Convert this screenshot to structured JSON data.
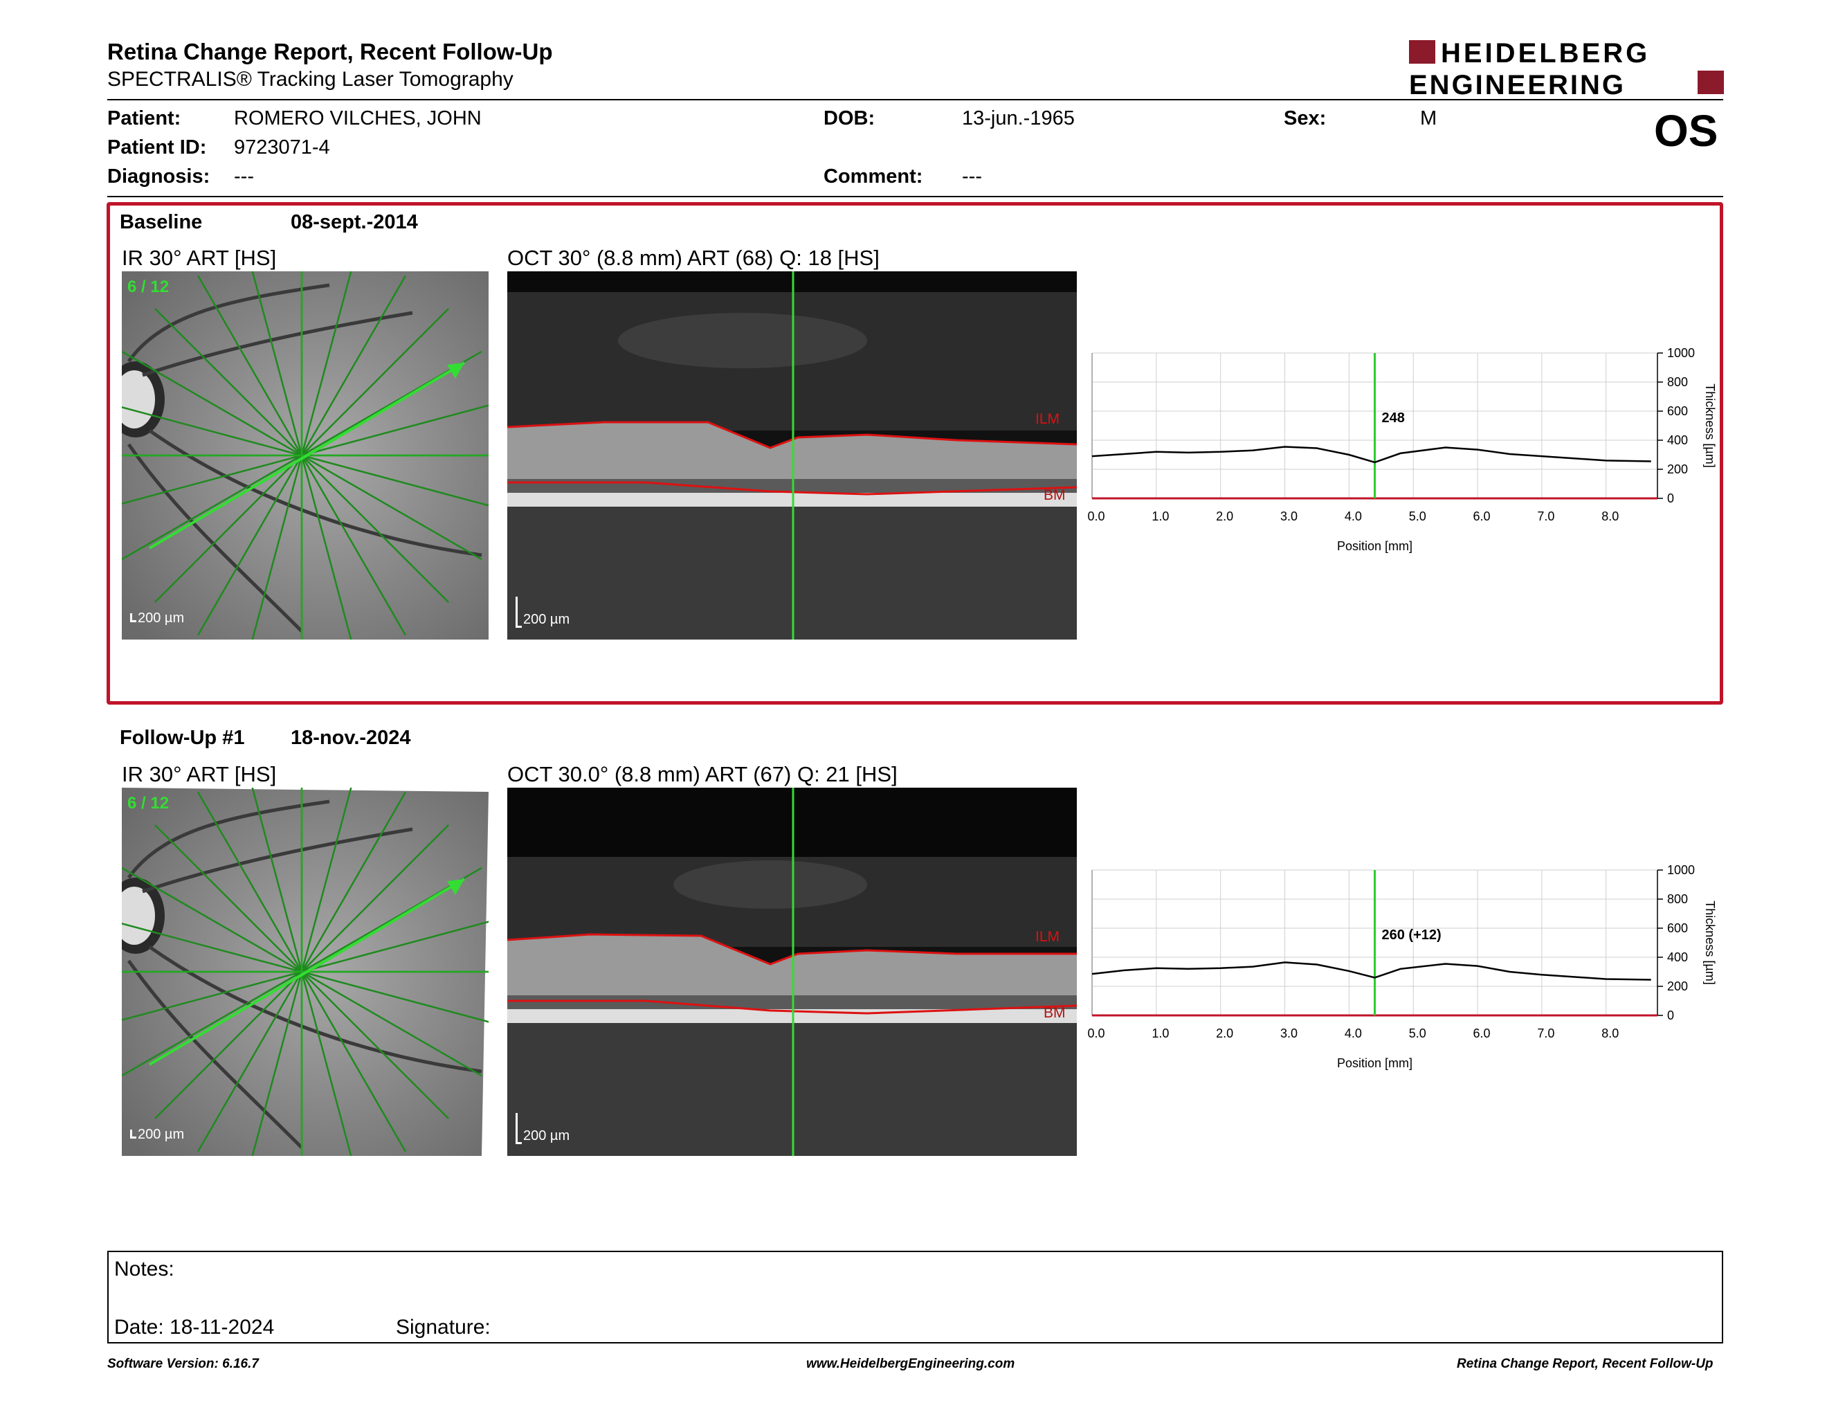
{
  "header": {
    "title": "Retina Change Report, Recent Follow-Up",
    "subtitle": "SPECTRALIS® Tracking Laser Tomography",
    "logo_line1": "HEIDELBERG",
    "logo_line2": "ENGINEERING",
    "brand_color": "#8b1a2b"
  },
  "patient": {
    "name_label": "Patient:",
    "name": "ROMERO VILCHES, JOHN",
    "id_label": "Patient ID:",
    "id": "9723071-4",
    "diagnosis_label": "Diagnosis:",
    "diagnosis": "---",
    "dob_label": "DOB:",
    "dob": "13-jun.-1965",
    "comment_label": "Comment:",
    "comment": "---",
    "sex_label": "Sex:",
    "sex": "M",
    "eye": "OS"
  },
  "baseline": {
    "label": "Baseline",
    "date": "08-sept.-2014",
    "ir_title": "IR 30° ART [HS]",
    "ir_counter": "6 / 12",
    "oct_title": "OCT 30° (8.8 mm) ART (68) Q: 18 [HS]",
    "scale_label": "200 µm",
    "ilm": "ILM",
    "bm": "BM",
    "highlight_color": "#c0142a"
  },
  "followup": {
    "label": "Follow-Up #1",
    "date": "18-nov.-2024",
    "ir_title": "IR 30° ART [HS]",
    "ir_counter": "6 / 12",
    "oct_title": "OCT 30.0° (8.8 mm) ART (67) Q: 21 [HS]",
    "scale_label": "200 µm",
    "ilm": "ILM",
    "bm": "BM"
  },
  "chart_data": [
    {
      "type": "line",
      "xlabel": "Position [mm]",
      "ylabel": "Thickness [µm]",
      "xlim": [
        0,
        8.8
      ],
      "ylim": [
        0,
        1000
      ],
      "x_ticks": [
        "0.0",
        "1.0",
        "2.0",
        "3.0",
        "4.0",
        "5.0",
        "6.0",
        "7.0",
        "8.0"
      ],
      "y_ticks": [
        "0",
        "200",
        "400",
        "600",
        "800",
        "1000"
      ],
      "grid": true,
      "marker_x": 4.4,
      "marker_label": "248",
      "marker_color": "#2ecc2e",
      "x": [
        0,
        0.5,
        1.0,
        1.5,
        2.0,
        2.5,
        3.0,
        3.5,
        4.0,
        4.4,
        4.8,
        5.5,
        6.0,
        6.5,
        7.0,
        7.5,
        8.0,
        8.7
      ],
      "y": [
        290,
        305,
        320,
        315,
        320,
        330,
        355,
        345,
        300,
        248,
        310,
        350,
        335,
        305,
        290,
        275,
        260,
        255
      ]
    },
    {
      "type": "line",
      "xlabel": "Position [mm]",
      "ylabel": "Thickness [µm]",
      "xlim": [
        0,
        8.8
      ],
      "ylim": [
        0,
        1000
      ],
      "x_ticks": [
        "0.0",
        "1.0",
        "2.0",
        "3.0",
        "4.0",
        "5.0",
        "6.0",
        "7.0",
        "8.0"
      ],
      "y_ticks": [
        "0",
        "200",
        "400",
        "600",
        "800",
        "1000"
      ],
      "grid": true,
      "marker_x": 4.4,
      "marker_label": "260 (+12)",
      "marker_color": "#2ecc2e",
      "x": [
        0,
        0.5,
        1.0,
        1.5,
        2.0,
        2.5,
        3.0,
        3.5,
        4.0,
        4.4,
        4.8,
        5.5,
        6.0,
        6.5,
        7.0,
        7.5,
        8.0,
        8.7
      ],
      "y": [
        285,
        310,
        325,
        320,
        325,
        335,
        365,
        350,
        305,
        260,
        320,
        355,
        340,
        300,
        280,
        265,
        250,
        245
      ]
    }
  ],
  "notes": {
    "notes_label": "Notes:",
    "date_label": "Date: 18-11-2024",
    "signature_label": "Signature:"
  },
  "footer": {
    "left": "Software Version: 6.16.7",
    "center": "www.HeidelbergEngineering.com",
    "right": "Retina Change Report, Recent Follow-Up"
  }
}
